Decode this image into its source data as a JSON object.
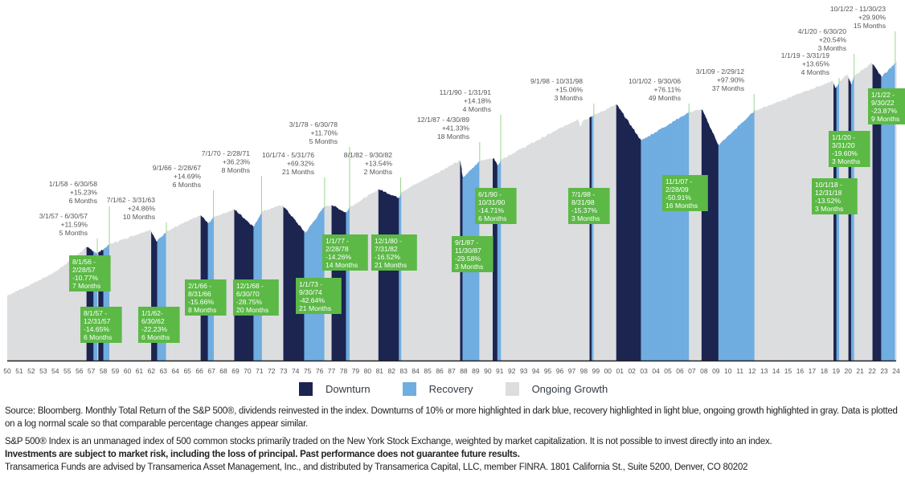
{
  "colors": {
    "downturn": "#1c2450",
    "recovery": "#70ade0",
    "growth": "#dcdddf",
    "label_box": "#5cb946",
    "label_text": "#ffffff",
    "annotation_text": "#555555",
    "leader_line": "#9bd58c",
    "axis": "#222222"
  },
  "chart_data": {
    "type": "area",
    "title": "",
    "xlabel": "",
    "ylabel": "",
    "scale": "log",
    "x_range": [
      1950,
      2024
    ],
    "grid": false,
    "x_tick_labels": [
      "50",
      "51",
      "52",
      "53",
      "54",
      "55",
      "56",
      "57",
      "58",
      "59",
      "60",
      "61",
      "62",
      "63",
      "64",
      "65",
      "66",
      "67",
      "68",
      "69",
      "70",
      "71",
      "72",
      "73",
      "74",
      "75",
      "76",
      "77",
      "78",
      "79",
      "80",
      "81",
      "82",
      "83",
      "84",
      "85",
      "86",
      "87",
      "88",
      "89",
      "90",
      "91",
      "92",
      "93",
      "94",
      "95",
      "96",
      "97",
      "98",
      "99",
      "00",
      "01",
      "02",
      "03",
      "04",
      "05",
      "06",
      "07",
      "08",
      "09",
      "10",
      "11",
      "12",
      "13",
      "14",
      "15",
      "16",
      "17",
      "18",
      "19",
      "20",
      "21",
      "22",
      "23",
      "24"
    ],
    "series": [
      {
        "name": "S&P 500 Total Return (relative level, log)",
        "points": [
          [
            1950,
            1.0
          ],
          [
            1952,
            1.25
          ],
          [
            1954,
            1.6
          ],
          [
            1956.6,
            2.6
          ],
          [
            1957.5,
            2.3
          ],
          [
            1958.5,
            2.75
          ],
          [
            1961.9,
            3.7
          ],
          [
            1962.4,
            2.9
          ],
          [
            1963.3,
            3.6
          ],
          [
            1966.1,
            4.9
          ],
          [
            1966.7,
            4.15
          ],
          [
            1967.2,
            4.75
          ],
          [
            1968.9,
            5.5
          ],
          [
            1970.5,
            3.9
          ],
          [
            1971.2,
            5.3
          ],
          [
            1972.9,
            6.0
          ],
          [
            1974.8,
            3.45
          ],
          [
            1976.4,
            5.85
          ],
          [
            1977.0,
            6.0
          ],
          [
            1978.2,
            5.15
          ],
          [
            1978.5,
            5.75
          ],
          [
            1980.9,
            8.2
          ],
          [
            1982.6,
            6.9
          ],
          [
            1982.8,
            7.8
          ],
          [
            1987.7,
            14.5
          ],
          [
            1987.9,
            10.2
          ],
          [
            1989.3,
            14.4
          ],
          [
            1990.5,
            15.2
          ],
          [
            1990.8,
            13.0
          ],
          [
            1991.1,
            14.8
          ],
          [
            1997.5,
            33.0
          ],
          [
            1997.7,
            28.0
          ],
          [
            1997.9,
            32.0
          ],
          [
            2000.7,
            44.0
          ],
          [
            2002.75,
            21.5
          ],
          [
            2006.75,
            37.8
          ],
          [
            2007.8,
            40.0
          ],
          [
            2009.2,
            19.6
          ],
          [
            2012.2,
            38.8
          ],
          [
            2018.7,
            70.0
          ],
          [
            2018.95,
            60.5
          ],
          [
            2019.25,
            68.8
          ],
          [
            2019.95,
            80.0
          ],
          [
            2020.25,
            64.3
          ],
          [
            2020.5,
            77.5
          ],
          [
            2021.95,
            100.0
          ],
          [
            2022.75,
            76.1
          ],
          [
            2023.9,
            98.9
          ],
          [
            2024.0,
            104.0
          ]
        ]
      }
    ],
    "periods": [
      {
        "type": "downturn",
        "start": 1956.6,
        "end": 1957.2,
        "label": [
          "8/1/56 -",
          "2/28/57",
          "-10.77%",
          "7 Months"
        ]
      },
      {
        "type": "recovery",
        "start": 1957.2,
        "end": 1957.5,
        "label": [
          "3/1/57 - 6/30/57",
          "+11.59%",
          "5 Months"
        ]
      },
      {
        "type": "downturn",
        "start": 1957.6,
        "end": 1958.0,
        "label": [
          "8/1/57 -",
          "12/31/57",
          "-14.65%",
          "6 Months"
        ]
      },
      {
        "type": "recovery",
        "start": 1958.0,
        "end": 1958.5,
        "label": [
          "1/1/58 - 6/30/58",
          "+15.23%",
          "6 Months"
        ]
      },
      {
        "type": "downturn",
        "start": 1962.0,
        "end": 1962.5,
        "label": [
          "1/1/62-",
          "6/30/62",
          "-22.23%",
          "6 Months"
        ]
      },
      {
        "type": "recovery",
        "start": 1962.5,
        "end": 1963.25,
        "label": [
          "7/1/62 - 3/31/63",
          "+24.86%",
          "10 Months"
        ]
      },
      {
        "type": "downturn",
        "start": 1966.1,
        "end": 1966.67,
        "label": [
          "2/1/66 -",
          "8/31/66",
          "-15.66%",
          "8 Months"
        ]
      },
      {
        "type": "recovery",
        "start": 1966.67,
        "end": 1967.17,
        "label": [
          "9/1/66 - 2/28/67",
          "+14.69%",
          "6 Months"
        ]
      },
      {
        "type": "downturn",
        "start": 1968.92,
        "end": 1970.5,
        "label": [
          "12/1/68 -",
          "6/30/70",
          "-28.75%",
          "20 Months"
        ]
      },
      {
        "type": "recovery",
        "start": 1970.5,
        "end": 1971.17,
        "label": [
          "7/1/70 - 2/28/71",
          "+36.23%",
          "8 Months"
        ]
      },
      {
        "type": "downturn",
        "start": 1973.0,
        "end": 1974.75,
        "label": [
          "1/1/73 -",
          "9/30/74",
          "-42.64%",
          "21 Months"
        ]
      },
      {
        "type": "recovery",
        "start": 1974.75,
        "end": 1976.42,
        "label": [
          "10/1/74 - 5/31/76",
          "+69.32%",
          "21 Months"
        ]
      },
      {
        "type": "downturn",
        "start": 1977.0,
        "end": 1978.17,
        "label": [
          "1/1/77 -",
          "2/28/78",
          "-14.26%",
          "14 Months"
        ]
      },
      {
        "type": "recovery",
        "start": 1978.17,
        "end": 1978.5,
        "label": [
          "3/1/78 - 6/30/78",
          "+11.70%",
          "5 Months"
        ]
      },
      {
        "type": "downturn",
        "start": 1980.92,
        "end": 1982.58,
        "label": [
          "12/1/80 -",
          "7/31/82",
          "-16.52%",
          "21 Months"
        ]
      },
      {
        "type": "recovery",
        "start": 1982.58,
        "end": 1982.75,
        "label": [
          "8/1/82 - 9/30/82",
          "+13.54%",
          "2 Months"
        ]
      },
      {
        "type": "downturn",
        "start": 1987.67,
        "end": 1987.92,
        "label": [
          "9/1/87 -",
          "11/30/87",
          "-29.58%",
          "3 Months"
        ]
      },
      {
        "type": "recovery",
        "start": 1987.92,
        "end": 1989.33,
        "label": [
          "12/1/87 - 4/30/89",
          "+41.33%",
          "18 Months"
        ]
      },
      {
        "type": "downturn",
        "start": 1990.42,
        "end": 1990.83,
        "label": [
          "6/1/90 -",
          "10/31/90",
          "-14.71%",
          "6 Months"
        ]
      },
      {
        "type": "recovery",
        "start": 1990.83,
        "end": 1991.08,
        "label": [
          "11/1/90 - 1/31/91",
          "+14.18%",
          "4 Months"
        ]
      },
      {
        "type": "downturn",
        "start": 1998.5,
        "end": 1998.67,
        "label": [
          "7/1/98 -",
          "8/31/98",
          "-15.37%",
          "3 Months"
        ]
      },
      {
        "type": "recovery",
        "start": 1998.67,
        "end": 1998.83,
        "label": [
          "9/1/98 - 10/31/98",
          "+15.06%",
          "3 Months"
        ]
      },
      {
        "type": "downturn",
        "start": 2000.67,
        "end": 2002.75,
        "label": null
      },
      {
        "type": "recovery",
        "start": 2002.75,
        "end": 2006.75,
        "label": [
          "10/1/02 - 9/30/06",
          "+76.11%",
          "49 Months"
        ]
      },
      {
        "type": "downturn",
        "start": 2007.83,
        "end": 2009.17,
        "label": [
          "11/1/07 -",
          "2/28/09",
          "-50.91%",
          "16 Months"
        ]
      },
      {
        "type": "recovery",
        "start": 2009.17,
        "end": 2012.17,
        "label": [
          "3/1/09 - 2/29/12",
          "+97.90%",
          "37 Months"
        ]
      },
      {
        "type": "downturn",
        "start": 2018.75,
        "end": 2019.0,
        "label": [
          "10/1/18 -",
          "12/31/18",
          "-13.52%",
          "3 Months"
        ]
      },
      {
        "type": "recovery",
        "start": 2019.0,
        "end": 2019.25,
        "label": [
          "1/1/19 - 3/31/19",
          "+13.65%",
          "4 Months"
        ]
      },
      {
        "type": "downturn",
        "start": 2020.0,
        "end": 2020.25,
        "label": [
          "1/1/20 -",
          "3/31/20",
          "-19.60%",
          "3 Months"
        ]
      },
      {
        "type": "recovery",
        "start": 2020.25,
        "end": 2020.5,
        "label": [
          "4/1/20 - 6/30/20",
          "+20.54%",
          "3 Months"
        ]
      },
      {
        "type": "downturn",
        "start": 2022.0,
        "end": 2022.75,
        "label": [
          "1/1/22 -",
          "9/30/22",
          "-23.87%",
          "9 Months"
        ]
      },
      {
        "type": "recovery",
        "start": 2022.75,
        "end": 2023.92,
        "label": [
          "10/1/22 - 11/30/23",
          "+29.90%",
          "15 Months"
        ]
      }
    ],
    "legend": {
      "position": "bottom-center",
      "entries": [
        {
          "key": "downturn",
          "label": "Downturn"
        },
        {
          "key": "recovery",
          "label": "Recovery"
        },
        {
          "key": "growth",
          "label": "Ongoing Growth"
        }
      ]
    }
  },
  "legend": {
    "downturn": "Downturn",
    "recovery": "Recovery",
    "growth": "Ongoing Growth"
  },
  "footer": {
    "source": "Source: Bloomberg. Monthly Total Return of the S&P 500®, dividends reinvested in the index. Downturns of 10% or more highlighted in dark blue, recovery highlighted in light blue, ongoing growth highlighted in gray. Data is plotted on a log normal scale so that comparable percentage changes appear similar.",
    "index_note": "S&P 500® Index is an unmanaged index of 500 common stocks primarily traded on the New York Stock Exchange, weighted by market capitalization. It is not possible to invest directly into an index.",
    "risk_note": "Investments are subject to market risk, including the loss of principal. Past performance does not guarantee future results.",
    "distributor_note": "Transamerica Funds are advised by Transamerica Asset Management, Inc., and distributed by Transamerica Capital, LLC, member FINRA. 1801 California St., Suite 5200, Denver, CO 80202"
  }
}
